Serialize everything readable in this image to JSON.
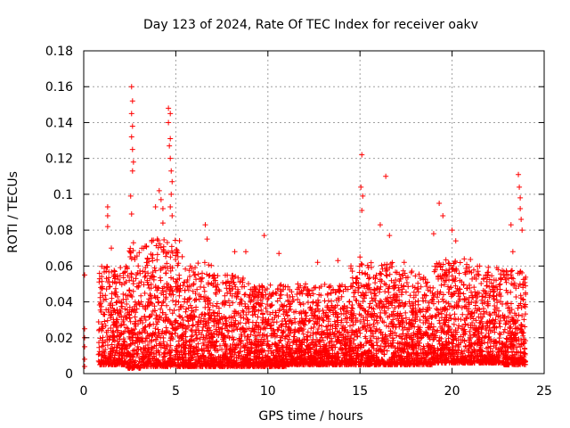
{
  "chart_data": {
    "type": "scatter",
    "title": "Day 123 of 2024, Rate Of TEC Index for receiver oakv",
    "xlabel": "GPS time / hours",
    "ylabel": "ROTI / TECUs",
    "xlim": [
      0,
      25
    ],
    "ylim": [
      0,
      0.18
    ],
    "xticks": [
      0,
      5,
      10,
      15,
      20,
      25
    ],
    "xtick_labels": [
      "0",
      "5",
      "10",
      "15",
      "20",
      "25"
    ],
    "yticks": [
      0,
      0.02,
      0.04,
      0.06,
      0.08,
      0.1,
      0.12,
      0.14,
      0.16,
      0.18
    ],
    "ytick_labels": [
      "0",
      "0.02",
      "0.04",
      "0.06",
      "0.08",
      "0.1",
      "0.12",
      "0.14",
      "0.16",
      "0.18"
    ],
    "grid": true,
    "marker": "plus",
    "color": "#ff0000",
    "series": [
      {
        "name": "ROTI",
        "points": [
          [
            0.05,
            0.055
          ],
          [
            0.05,
            0.025
          ],
          [
            0.05,
            0.02
          ],
          [
            0.05,
            0.015
          ],
          [
            0.05,
            0.008
          ],
          [
            0.05,
            0.004
          ],
          [
            1.3,
            0.093
          ],
          [
            1.3,
            0.088
          ],
          [
            1.3,
            0.082
          ],
          [
            1.5,
            0.07
          ],
          [
            2.6,
            0.16
          ],
          [
            2.65,
            0.152
          ],
          [
            2.6,
            0.145
          ],
          [
            2.65,
            0.138
          ],
          [
            2.6,
            0.132
          ],
          [
            2.65,
            0.125
          ],
          [
            2.7,
            0.118
          ],
          [
            2.65,
            0.113
          ],
          [
            2.55,
            0.099
          ],
          [
            2.6,
            0.089
          ],
          [
            2.7,
            0.073
          ],
          [
            2.6,
            0.064
          ],
          [
            3.9,
            0.093
          ],
          [
            4.1,
            0.102
          ],
          [
            4.2,
            0.097
          ],
          [
            4.3,
            0.092
          ],
          [
            4.0,
            0.075
          ],
          [
            4.3,
            0.084
          ],
          [
            4.6,
            0.148
          ],
          [
            4.7,
            0.145
          ],
          [
            4.6,
            0.14
          ],
          [
            4.7,
            0.131
          ],
          [
            4.65,
            0.127
          ],
          [
            4.7,
            0.12
          ],
          [
            4.75,
            0.113
          ],
          [
            4.8,
            0.107
          ],
          [
            4.75,
            0.1
          ],
          [
            4.7,
            0.093
          ],
          [
            4.8,
            0.088
          ],
          [
            6.6,
            0.083
          ],
          [
            6.7,
            0.075
          ],
          [
            8.2,
            0.068
          ],
          [
            8.8,
            0.068
          ],
          [
            9.8,
            0.077
          ],
          [
            10.6,
            0.067
          ],
          [
            12.7,
            0.062
          ],
          [
            13.8,
            0.063
          ],
          [
            15.1,
            0.122
          ],
          [
            15.05,
            0.104
          ],
          [
            15.15,
            0.099
          ],
          [
            15.1,
            0.091
          ],
          [
            15.0,
            0.065
          ],
          [
            16.1,
            0.083
          ],
          [
            16.4,
            0.11
          ],
          [
            16.6,
            0.077
          ],
          [
            17.4,
            0.062
          ],
          [
            19.0,
            0.078
          ],
          [
            19.3,
            0.095
          ],
          [
            19.5,
            0.088
          ],
          [
            20.0,
            0.08
          ],
          [
            20.2,
            0.074
          ],
          [
            21.5,
            0.06
          ],
          [
            22.5,
            0.058
          ],
          [
            23.2,
            0.083
          ],
          [
            23.3,
            0.068
          ],
          [
            23.6,
            0.111
          ],
          [
            23.65,
            0.104
          ],
          [
            23.7,
            0.098
          ],
          [
            23.7,
            0.092
          ],
          [
            23.75,
            0.086
          ],
          [
            23.8,
            0.08
          ]
        ],
        "dense_bands": [
          {
            "x_range": [
              0.8,
              2.4
            ],
            "y_range": [
              0.005,
              0.06
            ]
          },
          {
            "x_range": [
              2.4,
              3.2
            ],
            "y_range": [
              0.003,
              0.07
            ]
          },
          {
            "x_range": [
              3.2,
              5.4
            ],
            "y_range": [
              0.004,
              0.075
            ]
          },
          {
            "x_range": [
              5.4,
              7.0
            ],
            "y_range": [
              0.004,
              0.062
            ]
          },
          {
            "x_range": [
              7.0,
              9.0
            ],
            "y_range": [
              0.004,
              0.055
            ]
          },
          {
            "x_range": [
              9.0,
              11.0
            ],
            "y_range": [
              0.004,
              0.05
            ]
          },
          {
            "x_range": [
              11.0,
              14.5
            ],
            "y_range": [
              0.005,
              0.05
            ]
          },
          {
            "x_range": [
              14.5,
              16.8
            ],
            "y_range": [
              0.005,
              0.062
            ]
          },
          {
            "x_range": [
              16.8,
              19.0
            ],
            "y_range": [
              0.005,
              0.058
            ]
          },
          {
            "x_range": [
              19.0,
              21.0
            ],
            "y_range": [
              0.006,
              0.065
            ]
          },
          {
            "x_range": [
              21.0,
              22.8
            ],
            "y_range": [
              0.006,
              0.06
            ]
          },
          {
            "x_range": [
              22.8,
              24.0
            ],
            "y_range": [
              0.005,
              0.058
            ]
          }
        ]
      }
    ]
  }
}
